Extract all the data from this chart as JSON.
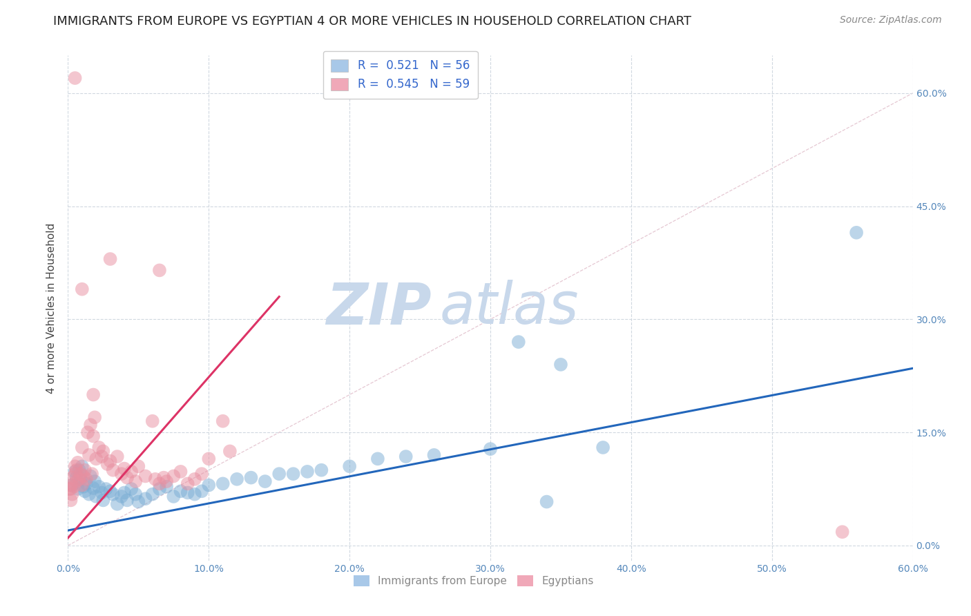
{
  "title": "IMMIGRANTS FROM EUROPE VS EGYPTIAN 4 OR MORE VEHICLES IN HOUSEHOLD CORRELATION CHART",
  "source": "Source: ZipAtlas.com",
  "ylabel": "4 or more Vehicles in Household",
  "xlim": [
    0.0,
    0.6
  ],
  "ylim": [
    -0.02,
    0.65
  ],
  "xticks": [
    0.0,
    0.1,
    0.2,
    0.3,
    0.4,
    0.5,
    0.6
  ],
  "yticks": [
    0.0,
    0.15,
    0.3,
    0.45,
    0.6
  ],
  "xtick_labels": [
    "0.0%",
    "10.0%",
    "20.0%",
    "30.0%",
    "40.0%",
    "50.0%",
    "60.0%"
  ],
  "ytick_labels_right": [
    "0.0%",
    "15.0%",
    "30.0%",
    "45.0%",
    "60.0%"
  ],
  "blue_color": "#7aadd4",
  "pink_color": "#e88fa0",
  "diagonal_color": "#ddb0be",
  "watermark_zip": "ZIP",
  "watermark_atlas": "atlas",
  "watermark_color": "#c8d8eb",
  "blue_scatter": [
    [
      0.003,
      0.08
    ],
    [
      0.005,
      0.098
    ],
    [
      0.006,
      0.09
    ],
    [
      0.007,
      0.075
    ],
    [
      0.008,
      0.1
    ],
    [
      0.009,
      0.088
    ],
    [
      0.01,
      0.105
    ],
    [
      0.011,
      0.078
    ],
    [
      0.012,
      0.072
    ],
    [
      0.013,
      0.082
    ],
    [
      0.015,
      0.068
    ],
    [
      0.016,
      0.092
    ],
    [
      0.018,
      0.076
    ],
    [
      0.019,
      0.085
    ],
    [
      0.02,
      0.065
    ],
    [
      0.022,
      0.078
    ],
    [
      0.024,
      0.07
    ],
    [
      0.025,
      0.06
    ],
    [
      0.027,
      0.075
    ],
    [
      0.03,
      0.072
    ],
    [
      0.032,
      0.068
    ],
    [
      0.035,
      0.055
    ],
    [
      0.038,
      0.065
    ],
    [
      0.04,
      0.07
    ],
    [
      0.042,
      0.06
    ],
    [
      0.045,
      0.075
    ],
    [
      0.048,
      0.068
    ],
    [
      0.05,
      0.058
    ],
    [
      0.055,
      0.062
    ],
    [
      0.06,
      0.068
    ],
    [
      0.065,
      0.075
    ],
    [
      0.07,
      0.078
    ],
    [
      0.075,
      0.065
    ],
    [
      0.08,
      0.072
    ],
    [
      0.085,
      0.07
    ],
    [
      0.09,
      0.068
    ],
    [
      0.095,
      0.072
    ],
    [
      0.1,
      0.08
    ],
    [
      0.11,
      0.082
    ],
    [
      0.12,
      0.088
    ],
    [
      0.13,
      0.09
    ],
    [
      0.14,
      0.085
    ],
    [
      0.15,
      0.095
    ],
    [
      0.16,
      0.095
    ],
    [
      0.17,
      0.098
    ],
    [
      0.18,
      0.1
    ],
    [
      0.2,
      0.105
    ],
    [
      0.22,
      0.115
    ],
    [
      0.24,
      0.118
    ],
    [
      0.26,
      0.12
    ],
    [
      0.3,
      0.128
    ],
    [
      0.32,
      0.27
    ],
    [
      0.35,
      0.24
    ],
    [
      0.38,
      0.13
    ],
    [
      0.56,
      0.415
    ],
    [
      0.34,
      0.058
    ]
  ],
  "pink_scatter": [
    [
      0.001,
      0.075
    ],
    [
      0.002,
      0.08
    ],
    [
      0.002,
      0.06
    ],
    [
      0.003,
      0.068
    ],
    [
      0.003,
      0.09
    ],
    [
      0.004,
      0.078
    ],
    [
      0.005,
      0.095
    ],
    [
      0.005,
      0.105
    ],
    [
      0.006,
      0.085
    ],
    [
      0.006,
      0.1
    ],
    [
      0.007,
      0.11
    ],
    [
      0.008,
      0.088
    ],
    [
      0.009,
      0.095
    ],
    [
      0.01,
      0.08
    ],
    [
      0.01,
      0.13
    ],
    [
      0.011,
      0.092
    ],
    [
      0.012,
      0.1
    ],
    [
      0.013,
      0.088
    ],
    [
      0.014,
      0.15
    ],
    [
      0.015,
      0.12
    ],
    [
      0.016,
      0.16
    ],
    [
      0.017,
      0.095
    ],
    [
      0.018,
      0.145
    ],
    [
      0.019,
      0.17
    ],
    [
      0.02,
      0.115
    ],
    [
      0.022,
      0.13
    ],
    [
      0.024,
      0.118
    ],
    [
      0.025,
      0.125
    ],
    [
      0.028,
      0.108
    ],
    [
      0.03,
      0.112
    ],
    [
      0.032,
      0.1
    ],
    [
      0.035,
      0.118
    ],
    [
      0.038,
      0.095
    ],
    [
      0.04,
      0.102
    ],
    [
      0.042,
      0.09
    ],
    [
      0.045,
      0.098
    ],
    [
      0.048,
      0.085
    ],
    [
      0.05,
      0.105
    ],
    [
      0.055,
      0.092
    ],
    [
      0.06,
      0.165
    ],
    [
      0.062,
      0.088
    ],
    [
      0.065,
      0.082
    ],
    [
      0.068,
      0.09
    ],
    [
      0.07,
      0.085
    ],
    [
      0.075,
      0.092
    ],
    [
      0.08,
      0.098
    ],
    [
      0.085,
      0.082
    ],
    [
      0.09,
      0.088
    ],
    [
      0.095,
      0.095
    ],
    [
      0.1,
      0.115
    ],
    [
      0.11,
      0.165
    ],
    [
      0.115,
      0.125
    ],
    [
      0.005,
      0.62
    ],
    [
      0.03,
      0.38
    ],
    [
      0.065,
      0.365
    ],
    [
      0.01,
      0.34
    ],
    [
      0.018,
      0.2
    ],
    [
      0.55,
      0.018
    ],
    [
      0.002,
      0.075
    ]
  ],
  "blue_line": {
    "x0": 0.0,
    "y0": 0.02,
    "x1": 0.6,
    "y1": 0.235
  },
  "pink_line": {
    "x0": 0.0,
    "y0": 0.01,
    "x1": 0.15,
    "y1": 0.33
  },
  "diagonal_line": {
    "x0": 0.0,
    "y0": 0.0,
    "x1": 0.6,
    "y1": 0.6
  },
  "legend_labels_bottom": [
    "Immigrants from Europe",
    "Egyptians"
  ],
  "title_fontsize": 13,
  "source_fontsize": 10,
  "axis_label_fontsize": 11,
  "tick_fontsize": 10,
  "legend_patch_blue": "#a8c8e8",
  "legend_patch_pink": "#f0a8b8"
}
